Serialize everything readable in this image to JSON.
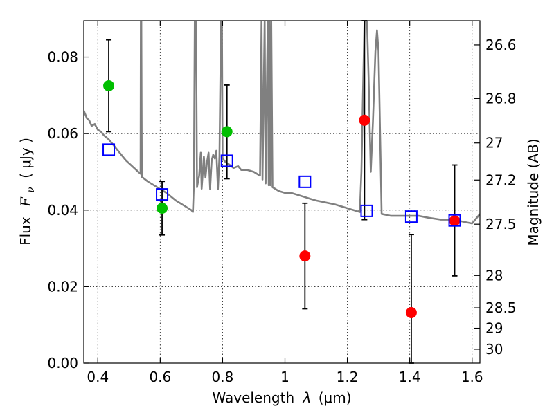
{
  "chart_data": {
    "type": "scatter",
    "xlabel_prefix": "Wavelength",
    "xlabel_symbol": "λ",
    "xlabel_unit": "(μm)",
    "ylabel_prefix": "Flux",
    "ylabel_symbol": "F",
    "ylabel_subscript": "ν",
    "ylabel_unit": "( μJy )",
    "y2label": "Magnitude (AB)",
    "xlim": [
      0.355,
      1.625
    ],
    "ylim": [
      0.0,
      0.0895
    ],
    "grid": true,
    "x_ticks": [
      0.4,
      0.6,
      0.8,
      1.0,
      1.2,
      1.4,
      1.6
    ],
    "x_tick_labels": [
      "0.4",
      "0.6",
      "0.8",
      "1",
      "1.2",
      "1.4",
      "1.6"
    ],
    "y_ticks": [
      0.0,
      0.02,
      0.04,
      0.06,
      0.08
    ],
    "y_tick_labels": [
      "0.00",
      "0.02",
      "0.04",
      "0.06",
      "0.08"
    ],
    "y2_ticks": [
      26.6,
      26.8,
      27.0,
      27.2,
      27.5,
      28.0,
      28.5,
      29.0,
      30.0
    ],
    "y2_tick_labels": [
      "26.6",
      "26.8",
      "27",
      "27.2",
      "27.5",
      "28",
      "28.5",
      "29",
      "30"
    ],
    "colors": {
      "green": "#00bf00",
      "red": "#ff0000",
      "model": "#0000ff",
      "spectrum": "#808080",
      "errorbar": "#000000"
    },
    "series": [
      {
        "marker": "circle",
        "color": "green",
        "points": [
          {
            "x": 0.435,
            "y": 0.0725,
            "yerr_low": 0.0605,
            "yerr_high": 0.0845
          },
          {
            "x": 0.606,
            "y": 0.0405,
            "yerr_low": 0.0335,
            "yerr_high": 0.0475
          },
          {
            "x": 0.814,
            "y": 0.0605,
            "yerr_low": 0.0482,
            "yerr_high": 0.0727
          }
        ]
      },
      {
        "marker": "circle",
        "color": "red",
        "points": [
          {
            "x": 1.064,
            "y": 0.028,
            "yerr_low": 0.0142,
            "yerr_high": 0.0418
          },
          {
            "x": 1.255,
            "y": 0.0635,
            "yerr_low": 0.0375,
            "yerr_high": 0.0895
          },
          {
            "x": 1.405,
            "y": 0.0132,
            "yerr_low": 0.0,
            "yerr_high": 0.0336
          },
          {
            "x": 1.544,
            "y": 0.0372,
            "yerr_low": 0.0228,
            "yerr_high": 0.0518
          }
        ]
      },
      {
        "marker": "square",
        "color": "model",
        "points": [
          {
            "x": 0.435,
            "y": 0.0558
          },
          {
            "x": 0.606,
            "y": 0.0441
          },
          {
            "x": 0.814,
            "y": 0.0529
          },
          {
            "x": 1.064,
            "y": 0.0474
          },
          {
            "x": 1.262,
            "y": 0.0398
          },
          {
            "x": 1.405,
            "y": 0.0383
          },
          {
            "x": 1.544,
            "y": 0.0373
          }
        ]
      },
      {
        "marker": "line",
        "color": "spectrum",
        "points": [
          [
            0.355,
            0.066
          ],
          [
            0.365,
            0.064
          ],
          [
            0.372,
            0.0635
          ],
          [
            0.38,
            0.062
          ],
          [
            0.39,
            0.0625
          ],
          [
            0.4,
            0.061
          ],
          [
            0.41,
            0.0605
          ],
          [
            0.42,
            0.0595
          ],
          [
            0.435,
            0.0585
          ],
          [
            0.45,
            0.057
          ],
          [
            0.47,
            0.055
          ],
          [
            0.49,
            0.053
          ],
          [
            0.51,
            0.0515
          ],
          [
            0.53,
            0.05
          ],
          [
            0.537,
            0.0495
          ],
          [
            0.538,
            0.0895
          ],
          [
            0.5395,
            0.0895
          ],
          [
            0.541,
            0.0487
          ],
          [
            0.56,
            0.0475
          ],
          [
            0.58,
            0.0465
          ],
          [
            0.6,
            0.0455
          ],
          [
            0.62,
            0.0445
          ],
          [
            0.65,
            0.0425
          ],
          [
            0.68,
            0.041
          ],
          [
            0.7,
            0.04
          ],
          [
            0.705,
            0.0395
          ],
          [
            0.708,
            0.047
          ],
          [
            0.711,
            0.0895
          ],
          [
            0.715,
            0.0895
          ],
          [
            0.718,
            0.046
          ],
          [
            0.725,
            0.049
          ],
          [
            0.73,
            0.055
          ],
          [
            0.733,
            0.0456
          ],
          [
            0.74,
            0.054
          ],
          [
            0.745,
            0.0485
          ],
          [
            0.75,
            0.0525
          ],
          [
            0.755,
            0.055
          ],
          [
            0.76,
            0.0455
          ],
          [
            0.765,
            0.053
          ],
          [
            0.77,
            0.0545
          ],
          [
            0.775,
            0.0535
          ],
          [
            0.78,
            0.0555
          ],
          [
            0.785,
            0.0455
          ],
          [
            0.79,
            0.054
          ],
          [
            0.795,
            0.0895
          ],
          [
            0.798,
            0.0895
          ],
          [
            0.8,
            0.0535
          ],
          [
            0.81,
            0.0525
          ],
          [
            0.82,
            0.052
          ],
          [
            0.835,
            0.051
          ],
          [
            0.85,
            0.0515
          ],
          [
            0.86,
            0.0505
          ],
          [
            0.87,
            0.0505
          ],
          [
            0.88,
            0.0505
          ],
          [
            0.9,
            0.05
          ],
          [
            0.92,
            0.049
          ],
          [
            0.925,
            0.0895
          ],
          [
            0.928,
            0.048
          ],
          [
            0.935,
            0.0895
          ],
          [
            0.938,
            0.047
          ],
          [
            0.945,
            0.0895
          ],
          [
            0.948,
            0.0465
          ],
          [
            0.95,
            0.0895
          ],
          [
            0.953,
            0.0465
          ],
          [
            0.956,
            0.0895
          ],
          [
            0.96,
            0.046
          ],
          [
            0.98,
            0.045
          ],
          [
            1.0,
            0.0445
          ],
          [
            1.02,
            0.0445
          ],
          [
            1.04,
            0.044
          ],
          [
            1.06,
            0.0435
          ],
          [
            1.08,
            0.043
          ],
          [
            1.1,
            0.0425
          ],
          [
            1.13,
            0.042
          ],
          [
            1.16,
            0.0415
          ],
          [
            1.18,
            0.041
          ],
          [
            1.2,
            0.0405
          ],
          [
            1.22,
            0.04
          ],
          [
            1.24,
            0.0395
          ],
          [
            1.245,
            0.05
          ],
          [
            1.25,
            0.07
          ],
          [
            1.255,
            0.0895
          ],
          [
            1.263,
            0.0895
          ],
          [
            1.268,
            0.075
          ],
          [
            1.275,
            0.05
          ],
          [
            1.282,
            0.063
          ],
          [
            1.29,
            0.0815
          ],
          [
            1.295,
            0.087
          ],
          [
            1.3,
            0.0815
          ],
          [
            1.31,
            0.039
          ],
          [
            1.34,
            0.0385
          ],
          [
            1.37,
            0.0385
          ],
          [
            1.4,
            0.0385
          ],
          [
            1.43,
            0.0385
          ],
          [
            1.46,
            0.038
          ],
          [
            1.5,
            0.0375
          ],
          [
            1.54,
            0.0375
          ],
          [
            1.57,
            0.037
          ],
          [
            1.6,
            0.0365
          ],
          [
            1.625,
            0.039
          ]
        ]
      }
    ]
  }
}
